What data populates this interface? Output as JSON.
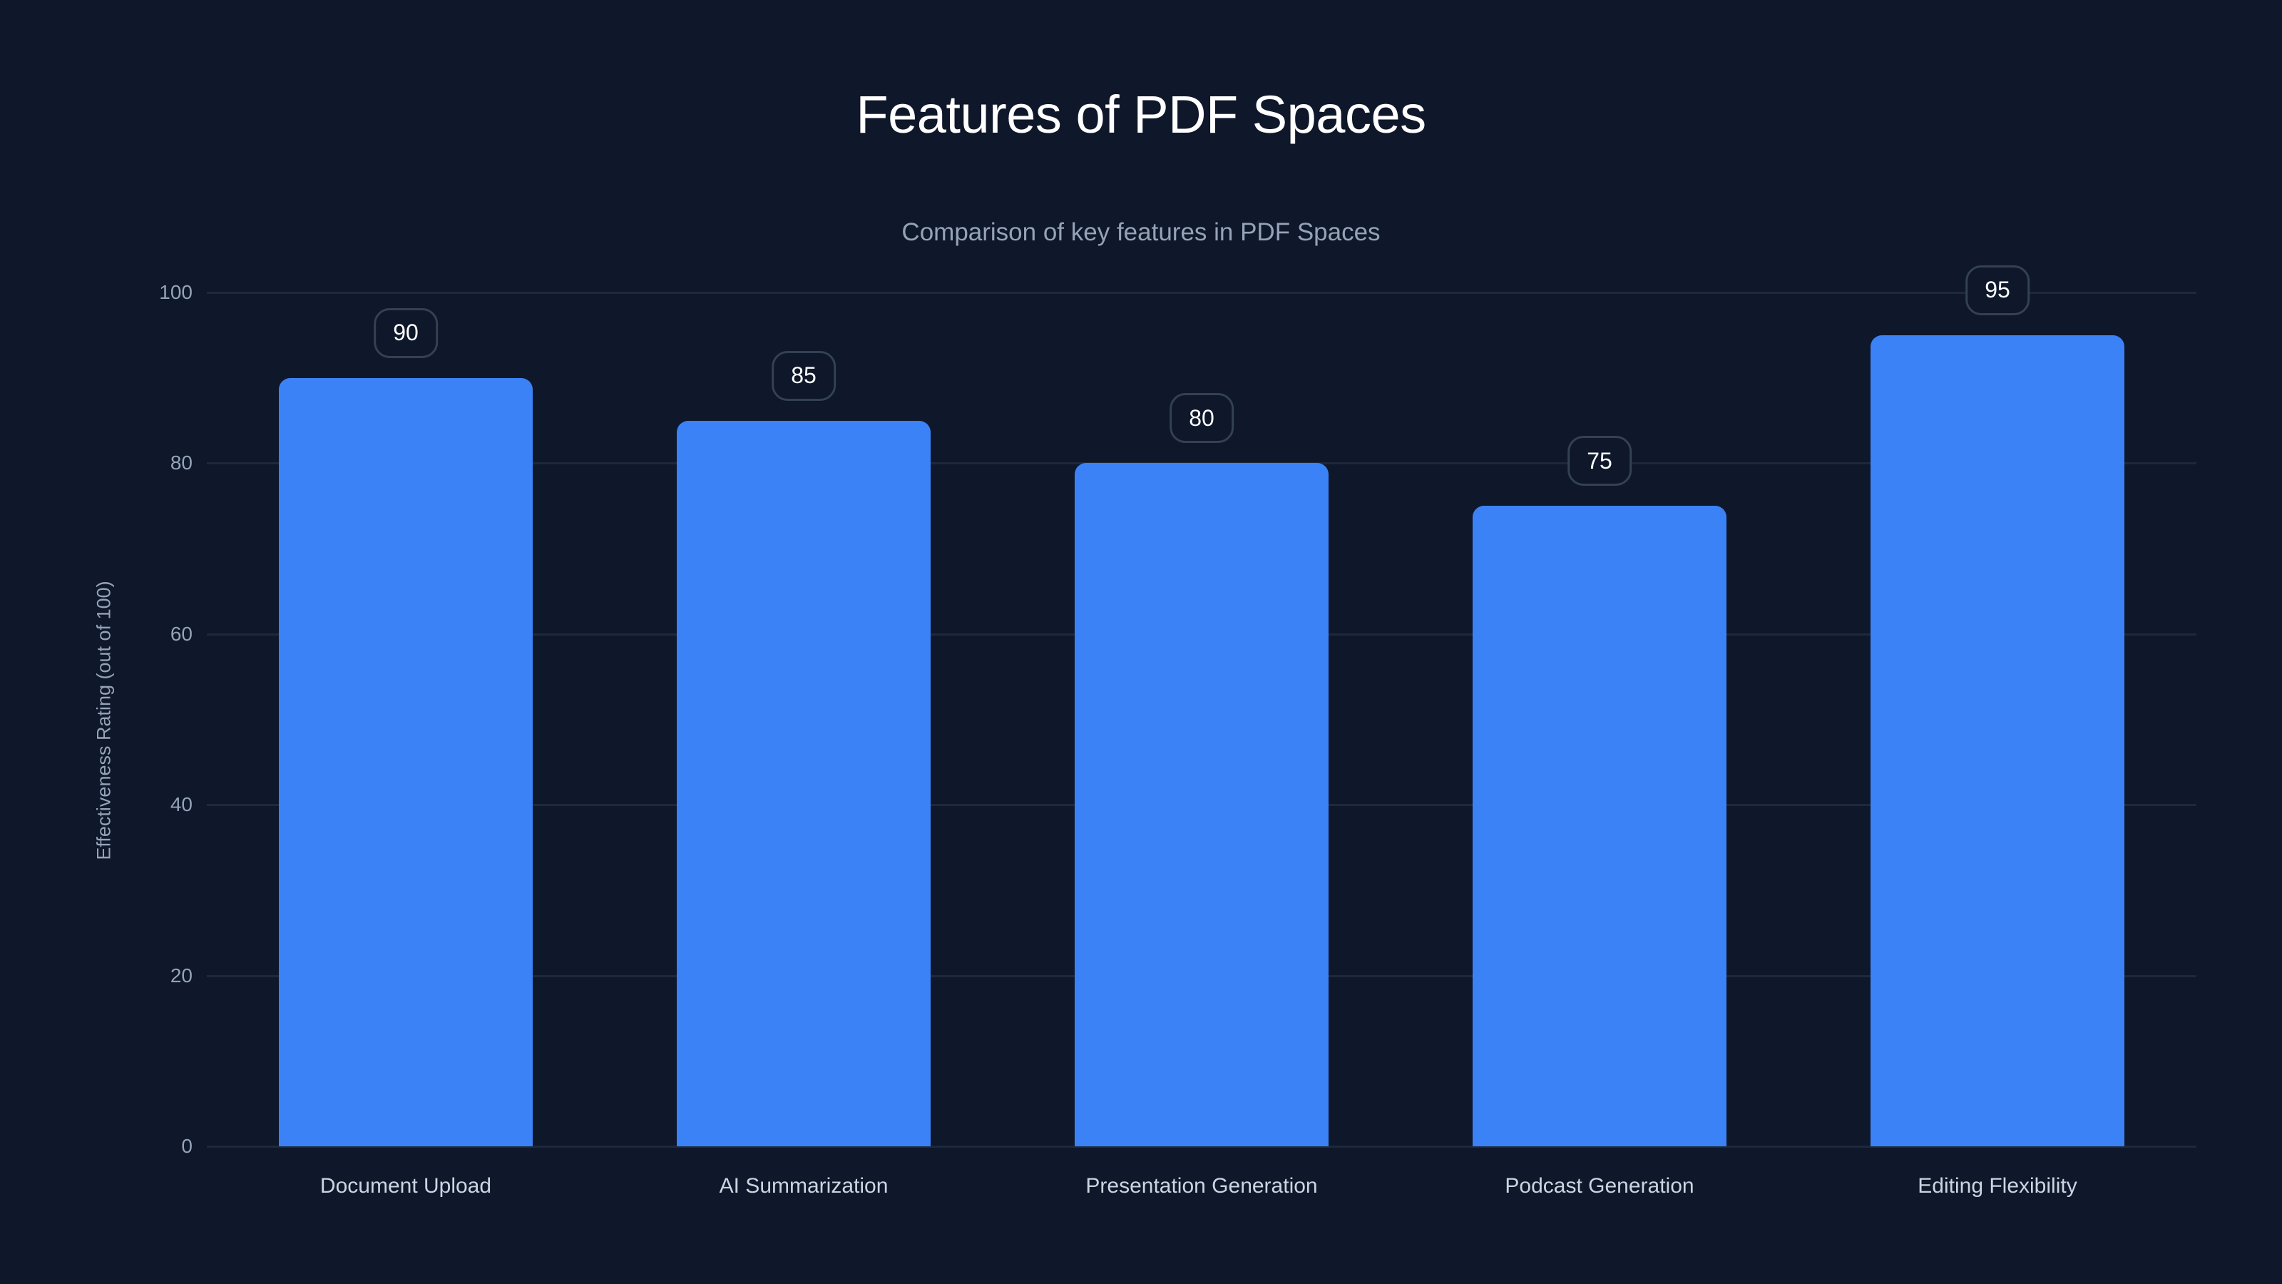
{
  "title": "Features of PDF Spaces",
  "subtitle": "Comparison of key features in PDF Spaces",
  "y_axis": {
    "label": "Effectiveness Rating (out of 100)",
    "ticks": [
      "0",
      "20",
      "40",
      "60",
      "80",
      "100"
    ]
  },
  "colors": {
    "background": "#0f172a",
    "bar": "#3b82f6",
    "grid": "#1e293b",
    "badge_border": "#334155",
    "title": "#ffffff",
    "muted_text": "#94a3b8"
  },
  "bars": [
    {
      "label": "Document Upload",
      "value": "90"
    },
    {
      "label": "AI Summarization",
      "value": "85"
    },
    {
      "label": "Presentation Generation",
      "value": "80"
    },
    {
      "label": "Podcast Generation",
      "value": "75"
    },
    {
      "label": "Editing Flexibility",
      "value": "95"
    }
  ],
  "chart_data": {
    "type": "bar",
    "title": "Features of PDF Spaces",
    "subtitle": "Comparison of key features in PDF Spaces",
    "categories": [
      "Document Upload",
      "AI Summarization",
      "Presentation Generation",
      "Podcast Generation",
      "Editing Flexibility"
    ],
    "values": [
      90,
      85,
      80,
      75,
      95
    ],
    "xlabel": "",
    "ylabel": "Effectiveness Rating (out of 100)",
    "ylim": [
      0,
      100
    ],
    "yticks": [
      0,
      20,
      40,
      60,
      80,
      100
    ],
    "grid": true,
    "legend": null,
    "data_labels": true
  }
}
